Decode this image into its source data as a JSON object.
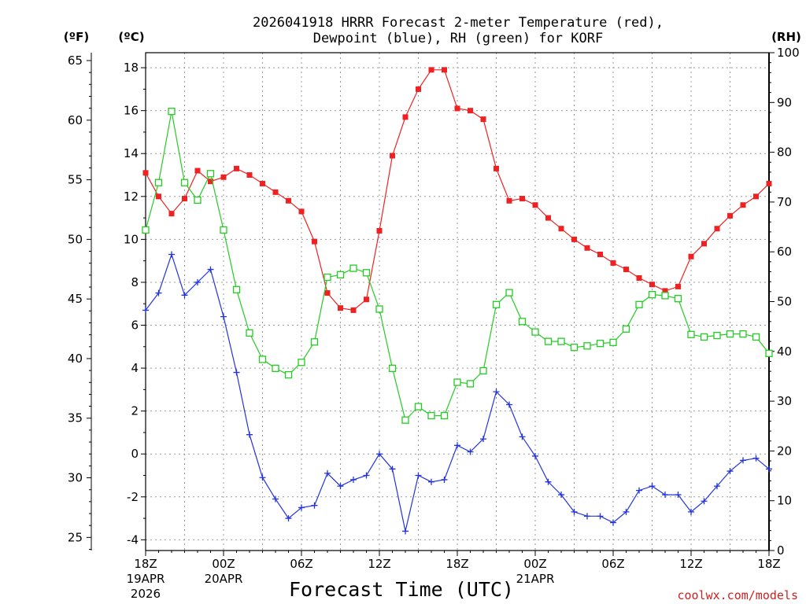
{
  "chart_data": {
    "type": "line",
    "title_line1": "2026041918 HRRR Forecast 2-meter Temperature (red),",
    "title_line2": "Dewpoint (blue), RH (green) for KORF",
    "units": {
      "fahrenheit": "(ºF)",
      "celsius": "(ºC)",
      "rh": "(RH)"
    },
    "xlabel": "Forecast Time (UTC)",
    "credit": "coolwx.com/models",
    "x_ticks": [
      {
        "hour": 0,
        "label": "18Z",
        "sub1": "19APR",
        "sub2": "2026"
      },
      {
        "hour": 6,
        "label": "00Z",
        "sub1": "20APR",
        "sub2": ""
      },
      {
        "hour": 12,
        "label": "06Z",
        "sub1": "",
        "sub2": ""
      },
      {
        "hour": 18,
        "label": "12Z",
        "sub1": "",
        "sub2": ""
      },
      {
        "hour": 24,
        "label": "18Z",
        "sub1": "",
        "sub2": ""
      },
      {
        "hour": 30,
        "label": "00Z",
        "sub1": "21APR",
        "sub2": ""
      },
      {
        "hour": 36,
        "label": "06Z",
        "sub1": "",
        "sub2": ""
      },
      {
        "hour": 42,
        "label": "12Z",
        "sub1": "",
        "sub2": ""
      },
      {
        "hour": 48,
        "label": "18Z",
        "sub1": "",
        "sub2": ""
      }
    ],
    "xlim": [
      0,
      48
    ],
    "ylim_celsius": [
      -4.5,
      18.7
    ],
    "ylim_rh": [
      0,
      100
    ],
    "celsius_ticks": [
      "-4",
      "-2",
      "0",
      "2",
      "4",
      "6",
      "8",
      "10",
      "12",
      "14",
      "16",
      "18"
    ],
    "fahrenheit_ticks": [
      "25",
      "30",
      "35",
      "40",
      "45",
      "50",
      "55",
      "60",
      "65"
    ],
    "rh_ticks": [
      "0",
      "10",
      "20",
      "30",
      "40",
      "50",
      "60",
      "70",
      "80",
      "90",
      "100"
    ],
    "series": [
      {
        "name": "2-meter Temperature (ºC)",
        "color": "#ee2222",
        "axis": "celsius",
        "marker": "filled-square",
        "values": [
          13.1,
          12.0,
          11.2,
          11.9,
          13.2,
          12.7,
          12.9,
          13.3,
          13.0,
          12.6,
          12.2,
          11.8,
          11.3,
          9.9,
          7.5,
          6.8,
          6.7,
          7.2,
          10.4,
          13.9,
          15.7,
          17.0,
          17.9,
          17.9,
          16.1,
          16.0,
          15.6,
          13.3,
          11.8,
          11.9,
          11.6,
          11.0,
          10.5,
          10.0,
          9.6,
          9.3,
          8.9,
          8.6,
          8.2,
          7.9,
          7.6,
          7.8,
          9.2,
          9.8,
          10.5,
          11.1,
          11.6,
          12.0,
          12.6
        ]
      },
      {
        "name": "Dewpoint (ºC)",
        "color": "#2233dd",
        "axis": "celsius",
        "marker": "plus",
        "values": [
          6.7,
          7.5,
          9.3,
          7.4,
          8.0,
          8.6,
          6.4,
          3.8,
          0.9,
          -1.1,
          -2.1,
          -3.0,
          -2.5,
          -2.4,
          -0.9,
          -1.5,
          -1.2,
          -1.0,
          0.0,
          -0.7,
          -3.6,
          -1.0,
          -1.3,
          -1.2,
          0.4,
          0.1,
          0.7,
          2.9,
          2.3,
          0.8,
          -0.1,
          -1.3,
          -1.9,
          -2.7,
          -2.9,
          -2.9,
          -3.2,
          -2.7,
          -1.7,
          -1.5,
          -1.9,
          -1.9,
          -2.7,
          -2.2,
          -1.5,
          -0.8,
          -0.3,
          -0.2,
          -0.7
        ]
      },
      {
        "name": "RH (%)",
        "color": "#22cc22",
        "axis": "rh",
        "marker": "open-square",
        "values": [
          64.4,
          73.9,
          88.2,
          73.9,
          70.4,
          75.7,
          64.4,
          52.4,
          43.7,
          38.4,
          36.6,
          35.3,
          37.8,
          41.9,
          54.9,
          55.4,
          56.7,
          55.8,
          48.5,
          36.6,
          26.2,
          28.9,
          27.1,
          27.1,
          33.8,
          33.5,
          36.1,
          49.4,
          51.8,
          46.0,
          43.9,
          42.0,
          42.0,
          40.8,
          41.1,
          41.6,
          41.8,
          44.5,
          49.4,
          51.4,
          51.2,
          50.6,
          43.4,
          42.9,
          43.2,
          43.5,
          43.5,
          42.9,
          39.6
        ]
      }
    ]
  }
}
